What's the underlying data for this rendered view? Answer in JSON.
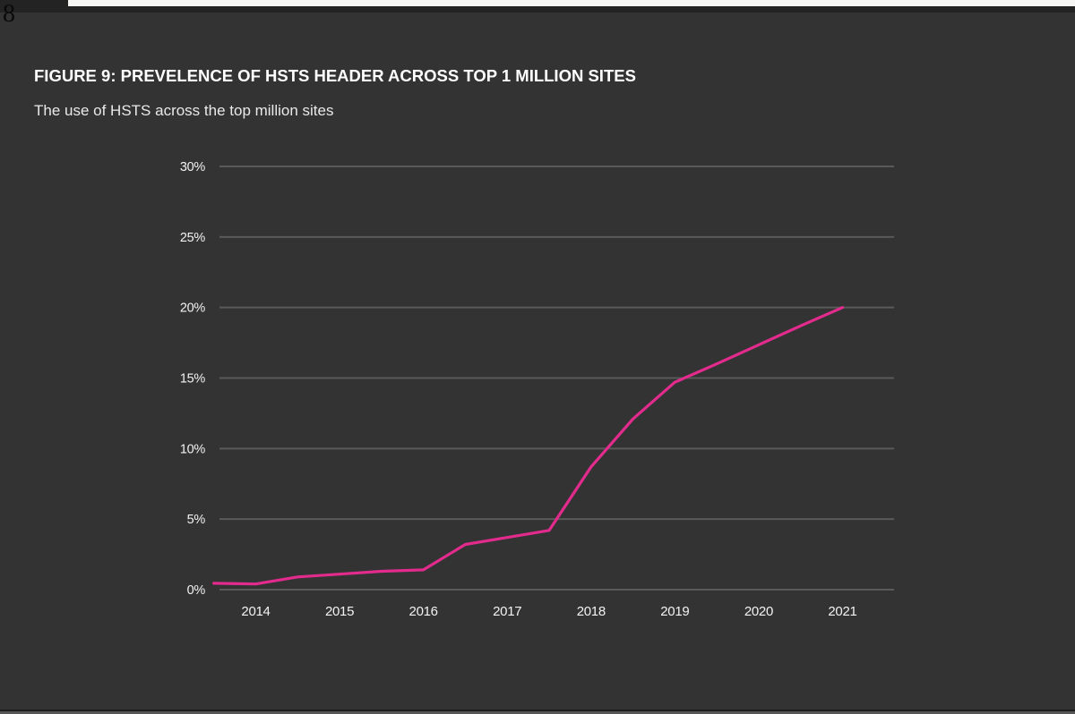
{
  "page": {
    "number": "8"
  },
  "figure": {
    "title": "FIGURE 9: PREVELENCE OF HSTS HEADER ACROSS TOP 1 MILLION SITES",
    "subtitle": "The use of HSTS across the top million sites"
  },
  "colors": {
    "background": "#333333",
    "line": "#e32b8d",
    "grid": "#5a5a5a",
    "tick_text": "#f2f2f2",
    "title_text": "#ffffff"
  },
  "chart_data": {
    "type": "line",
    "title": "FIGURE 9: PREVELENCE OF HSTS HEADER ACROSS TOP 1 MILLION SITES",
    "subtitle": "The use of HSTS across the top million sites",
    "xlabel": "",
    "ylabel": "",
    "ylim": [
      0,
      30
    ],
    "xlim": [
      2013.5,
      2021.6
    ],
    "grid": "horizontal",
    "legend_position": "none",
    "y_tick_values": [
      0,
      5,
      10,
      15,
      20,
      25,
      30
    ],
    "y_tick_labels": [
      "0%",
      "5%",
      "10%",
      "15%",
      "20%",
      "25%",
      "30%"
    ],
    "x_ticks": [
      2014,
      2015,
      2016,
      2017,
      2018,
      2019,
      2020,
      2021
    ],
    "x_tick_labels": [
      "2014",
      "2015",
      "2016",
      "2017",
      "2018",
      "2019",
      "2020",
      "2021"
    ],
    "series": [
      {
        "name": "HSTS prevalence across top 1 million sites",
        "x": [
          2013.5,
          2014,
          2014.5,
          2015,
          2015.5,
          2016,
          2016.5,
          2017,
          2017.5,
          2018,
          2018.5,
          2019,
          2019.5,
          2020,
          2020.5,
          2021
        ],
        "values": [
          0.45,
          0.4,
          0.9,
          1.1,
          1.3,
          1.4,
          3.2,
          3.7,
          4.2,
          8.7,
          12.1,
          14.7,
          16.0,
          17.35,
          18.7,
          20.0
        ]
      }
    ]
  }
}
